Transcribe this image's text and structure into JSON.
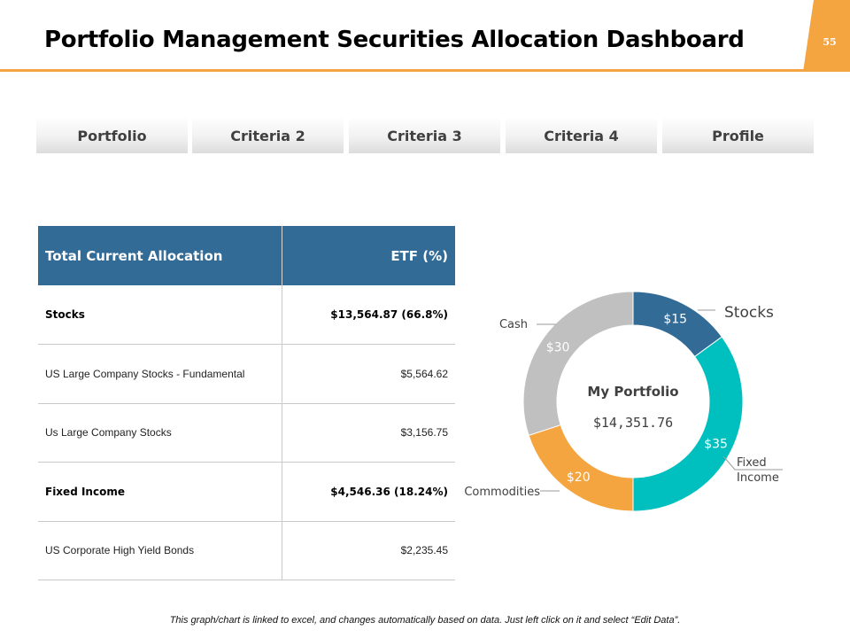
{
  "header": {
    "title": "Portfolio Management Securities Allocation Dashboard",
    "page_number": "55"
  },
  "tabs": [
    {
      "label": "Portfolio"
    },
    {
      "label": "Criteria 2"
    },
    {
      "label": "Criteria 3"
    },
    {
      "label": "Criteria 4"
    },
    {
      "label": "Profile"
    }
  ],
  "table": {
    "headers": [
      "Total Current Allocation",
      "ETF (%)"
    ],
    "rows": [
      {
        "label": "Stocks",
        "value": "$13,564.87 (66.8%)",
        "bold": true
      },
      {
        "label": "US Large Company Stocks - Fundamental",
        "value": "$5,564.62",
        "bold": false
      },
      {
        "label": "Us Large Company Stocks",
        "value": "$3,156.75",
        "bold": false
      },
      {
        "label": "Fixed Income",
        "value": "$4,546.36 (18.24%)",
        "bold": true
      },
      {
        "label": "US Corporate High Yield Bonds",
        "value": "$2,235.45",
        "bold": false
      }
    ]
  },
  "chart_data": {
    "type": "pie",
    "variant": "donut",
    "center_title": "My Portfolio",
    "center_value": "$14,351.76",
    "slices": [
      {
        "name": "Stocks",
        "value": 15,
        "label": "$15",
        "color": "#336b97"
      },
      {
        "name": "Fixed Income",
        "value": 35,
        "label": "$35",
        "color": "#00bfbf"
      },
      {
        "name": "Commodities",
        "value": 20,
        "label": "$20",
        "color": "#f4a540"
      },
      {
        "name": "Cash",
        "value": 30,
        "label": "$30",
        "color": "#c0c0c0"
      }
    ]
  },
  "footnote": "This graph/chart is linked to excel, and changes automatically based on data. Just left click on it and select “Edit Data”."
}
